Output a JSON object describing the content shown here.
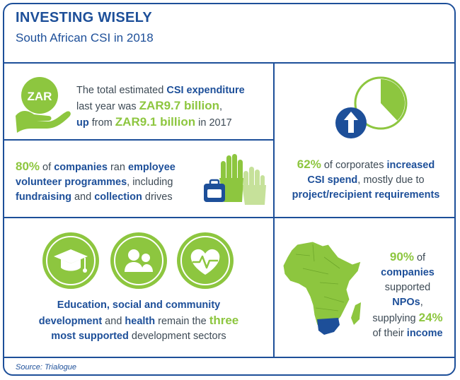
{
  "header": {
    "title": "INVESTING WISELY",
    "subtitle": "South African CSI in 2018"
  },
  "panel_expenditure": {
    "icon_text": "ZAR",
    "line1_pre": "The total estimated ",
    "line1_bold": "CSI expenditure",
    "line2_pre": "last year was ",
    "line2_value": "ZAR9.7 billion",
    "line2_post": ",",
    "line3_bold": "up",
    "line3_mid": " from ",
    "line3_value": "ZAR9.1 billion",
    "line3_post": " in 2017"
  },
  "panel_volunteer": {
    "percent": "80%",
    "line1_mid": " of ",
    "line1_bold": "companies",
    "line1_post": " ran ",
    "line1_bold2": "employee",
    "line2_bold": "volunteer programmes",
    "line2_post": ", including",
    "line3_bold": "fundraising",
    "line3_mid": " and ",
    "line3_bold2": "collection",
    "line3_post": " drives"
  },
  "panel_spend": {
    "percent": "62%",
    "line1_mid": " of corporates ",
    "line1_bold": "increased",
    "line2_bold": "CSI spend",
    "line2_post": ", mostly due to",
    "line3_bold": "project/recipient requirements",
    "pie_fraction": 0.38
  },
  "panel_sectors": {
    "icons": [
      "graduation-cap-icon",
      "people-icon",
      "heart-rate-icon"
    ],
    "line1_bold": "Education, social and community",
    "line2_bold": "development",
    "line2_mid": " and ",
    "line2_bold2": "health",
    "line2_post": " remain the ",
    "line2_value": "three",
    "line3_bold": "most supported",
    "line3_post": " development sectors"
  },
  "panel_npos": {
    "percent": "90%",
    "line1_post": " of",
    "line2_bold": "companies",
    "line3_text": "supported",
    "line4_bold": "NPOs",
    "line4_post": ",",
    "line5_pre": "supplying ",
    "line5_value": "24%",
    "line6_pre": "of their ",
    "line6_bold": "income"
  },
  "footer": {
    "source": "Source: Trialogue"
  },
  "colors": {
    "blue": "#1d4f99",
    "green": "#8dc63f",
    "text": "#3d4a55"
  }
}
